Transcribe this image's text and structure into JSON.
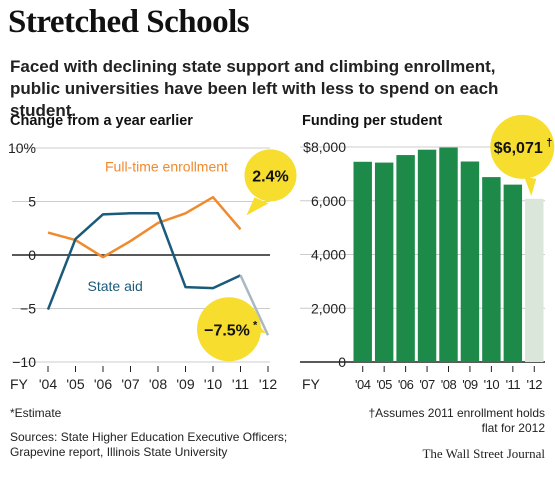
{
  "header": {
    "title": "Stretched Schools",
    "subtitle": "Faced with declining state support and climbing enrollment, public universities have been left with less to spend on each student."
  },
  "colors": {
    "enrollment": "#f08a2e",
    "state_aid": "#1a5a7a",
    "estimate_line": "#aab8c2",
    "bar": "#1e8a4a",
    "bar_estimate": "#d9e6d9",
    "callout": "#f7dd2e",
    "axis": "#222222",
    "grid": "#cccccc"
  },
  "chart_data": [
    {
      "type": "line",
      "title": "Change from a year earlier",
      "x": [
        "'04",
        "'05",
        "'06",
        "'07",
        "'08",
        "'09",
        "'10",
        "'11",
        "'12"
      ],
      "x_prefix": "FY",
      "ylim": [
        -10,
        10
      ],
      "yticks": [
        -10,
        -5,
        0,
        5,
        10
      ],
      "ytick_labels": [
        "−10",
        "−5",
        "0",
        "5",
        "10%"
      ],
      "series": [
        {
          "name": "Full-time enrollment",
          "values": [
            2.1,
            1.4,
            -0.2,
            1.3,
            3.0,
            3.9,
            5.4,
            2.4,
            null
          ]
        },
        {
          "name": "State aid",
          "values": [
            -5.1,
            1.5,
            3.8,
            3.9,
            3.9,
            -3.0,
            -3.1,
            -1.9,
            -7.5
          ],
          "estimate_from_index": 7
        }
      ],
      "callouts": [
        {
          "label": "2.4%",
          "series": 0,
          "index": 7
        },
        {
          "label": "−7.5%",
          "mark": "*",
          "series": 1,
          "index": 8
        }
      ]
    },
    {
      "type": "bar",
      "title": "Funding per student",
      "categories": [
        "'04",
        "'05",
        "'06",
        "'07",
        "'08",
        "'09",
        "'10",
        "'11",
        "'12"
      ],
      "x_prefix": "FY",
      "values": [
        7450,
        7420,
        7700,
        7900,
        7980,
        7460,
        6880,
        6600,
        6071
      ],
      "estimate_index": 8,
      "ylim": [
        0,
        8000
      ],
      "yticks": [
        0,
        2000,
        4000,
        6000,
        8000
      ],
      "ytick_labels": [
        "0",
        "2,000",
        "4,000",
        "6,000",
        "$8,000"
      ],
      "callout": {
        "label": "$6,071",
        "mark": "†",
        "index": 8
      }
    }
  ],
  "notes": {
    "estimate": "*Estimate",
    "sources": "Sources: State Higher Education Executive Officers; Grapevine report, Illinois State University",
    "assumption": "†Assumes 2011 enrollment holds flat for 2012",
    "credit": "The Wall Street Journal"
  }
}
